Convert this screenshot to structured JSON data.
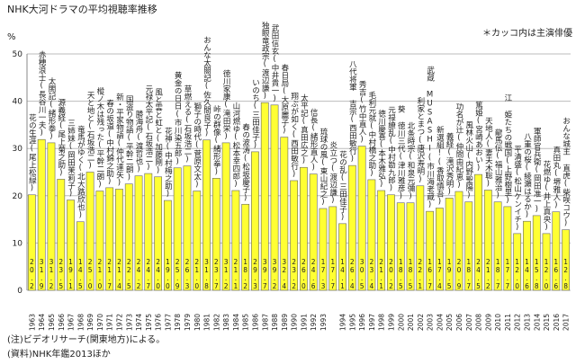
{
  "chart_data": {
    "type": "bar",
    "title": "NHK大河ドラマの平均視聴率推移",
    "y_label": "%",
    "annotation": "＊カッコ内は主演俳優",
    "notes": [
      "(注)ビデオリサーチ(関東地方)による。",
      "(資料)NHK年鑑2013ほか"
    ],
    "categories": [
      "1963",
      "1964",
      "1965",
      "1966",
      "1967",
      "1968",
      "1969",
      "1970",
      "1971",
      "1972",
      "1973",
      "1974",
      "1975",
      "1976",
      "1977",
      "1978",
      "1979",
      "1980",
      "1981",
      "1982",
      "1983",
      "1984",
      "1985",
      "1986",
      "1987",
      "1988",
      "1989",
      "1990",
      "1991",
      "1992",
      "1993",
      null,
      "1994",
      "1995",
      "1996",
      "1997",
      "1998",
      "1999",
      "2000",
      "2001",
      "2002",
      "2003",
      "2004",
      "2005",
      "2006",
      "2007",
      "2008",
      "2009",
      "2010",
      "2011",
      "2012",
      "2013",
      "2014",
      "2015",
      "2016",
      "2017"
    ],
    "titles": [
      "花の生涯(尾上松緑)",
      "赤穂浪士(長谷川一夫)",
      "太閤記(緒形拳)",
      "源義経(尾上菊之助)",
      "三姉妹(岡田茉莉子)",
      "竜馬がゆく(北大路欣也)",
      "天と地と(石坂浩二)",
      "樅ノ木は残った(平幹二朗)",
      "春の坂道(中村錦之助)",
      "新・平家物語(仲代達矢)",
      "国盗り物語(平幹二朗)",
      "勝海舟(渡哲也)",
      "元禄太平記(石坂浩二)",
      "風と雲と虹と(加藤剛)",
      "花神(中村梅之助)",
      "黄金の日日(市川染五郎)",
      "草燃える(石坂浩二)",
      "獅子の時代(菅原文太)",
      "おんな太閤記(佐久間良子)",
      "峠の群像(緒形拳)",
      "徳川家康(滝田栄)",
      "山河燃ゆ(松本幸四郎)",
      "春の波涛(松坂慶子)",
      "いのち(三田佳子)",
      "独眼竜政宗(渡辺謙)",
      "武田信玄(中井貴一)",
      "春日局(大原麗子)",
      "翔ぶが如く(西田敏行)",
      "太平記(真田広之)",
      "信長(緒形直人)",
      "琉球の風(東山紀之)",
      "炎立つ(渡辺謙)",
      "花の乱(三田佳子)",
      "八代将軍 吉宗(西田敏行)",
      "秀吉(竹中直人)",
      "毛利元就(中村橋之助)",
      "徳川慶喜(本木雅弘)",
      "元禄繚乱(中村勘九郎)",
      "葵 徳川三代(津川雅彦)",
      "北条時宗(和泉元彌)",
      "利家とまつ(唐沢寿明)",
      "武蔵 MUSASHI(市川海老蔵)",
      "新選組!(香取慎吾)",
      "義経(滝沢秀明)",
      "功名が辻(仲間由紀恵)",
      "風林火山(内野聖陽)",
      "篤姫(宮崎あおい)",
      "天地人(妻夫木聡)",
      "龍馬伝(福山雅治)",
      "江 姫たちの戦国(上野樹里)",
      "平清盛(松山ケンイチ)",
      "八重の桜(綾瀬はるか)",
      "軍師官兵衛(岡田准一)",
      "花燃ゆ(井上真央)",
      "真田丸(堺雅人)",
      "おんな城主 直虎(柴咲コウ)"
    ],
    "values": [
      20.2,
      31.9,
      31.2,
      23.5,
      19.1,
      14.5,
      25.0,
      21.0,
      21.7,
      21.4,
      22.5,
      24.2,
      24.7,
      24.0,
      19.0,
      25.9,
      26.3,
      21.0,
      31.8,
      23.7,
      31.2,
      21.1,
      18.2,
      29.3,
      39.7,
      39.2,
      32.4,
      23.2,
      26.0,
      24.6,
      17.3,
      17.7,
      14.1,
      26.4,
      30.5,
      23.4,
      21.1,
      20.2,
      18.5,
      18.5,
      22.1,
      16.7,
      17.4,
      19.5,
      20.9,
      18.7,
      24.5,
      21.2,
      18.7,
      17.7,
      12.0,
      14.6,
      15.8,
      12.0,
      16.6,
      12.8
    ],
    "value_labels": [
      "20.2",
      "31.9",
      "31.2",
      "23.5",
      "19.1",
      "14.5",
      "25.0",
      "21.0",
      "21.7",
      "21.4",
      "22.5",
      "24.2",
      "24.7",
      "24.0",
      "19.0",
      "25.9",
      "26.3",
      "21.0",
      "31.8",
      "23.7",
      "31.2",
      "21.1",
      "18.2",
      "29.3",
      "39.7",
      "39.2",
      "32.4",
      "23.2",
      "26.0",
      "24.6",
      "17.3",
      "17.7",
      "14.1",
      "26.4",
      "30.5",
      "23.4",
      "21.1",
      "20.2",
      "18.5",
      "18.5",
      "22.1",
      "16.7",
      "17.4",
      "19.5",
      "20.9",
      "18.7",
      "24.5",
      "21.2",
      "18.7",
      "17.7",
      "12.0",
      "14.6",
      "15.8",
      "12.0",
      "16.6",
      "12.8"
    ],
    "color": "#ffff33",
    "ylim": [
      0,
      50
    ],
    "yticks": [
      0,
      10,
      20,
      30,
      40,
      50
    ],
    "grid": true
  }
}
